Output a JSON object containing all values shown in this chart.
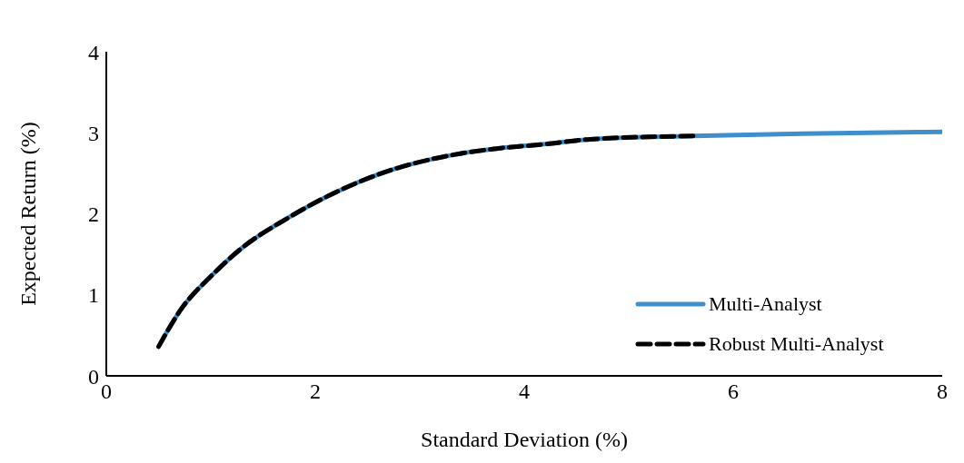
{
  "chart_data": {
    "type": "line",
    "xlabel": "Standard Deviation (%)",
    "ylabel": "Expected Return (%)",
    "xlim": [
      0,
      8
    ],
    "xticks": [
      0,
      2,
      4,
      6,
      8
    ],
    "ylim": [
      0,
      4
    ],
    "yticks": [
      0,
      1,
      2,
      3,
      4
    ],
    "grid": false,
    "legend": "bottom right",
    "marker": "none",
    "series": [
      {
        "name": "Multi-Analyst",
        "color": "#3e8fcc",
        "line_style": "solid",
        "x": [
          0.5,
          0.72,
          1.01,
          1.3,
          1.74,
          2.17,
          2.75,
          3.33,
          3.77,
          4.2,
          4.63,
          5.62,
          6.66,
          8.0
        ],
        "values": [
          0.36,
          0.83,
          1.24,
          1.58,
          1.95,
          2.25,
          2.55,
          2.73,
          2.81,
          2.86,
          2.92,
          2.96,
          2.99,
          3.01
        ]
      },
      {
        "name": "Robust Multi-Analyst",
        "color": "#000000",
        "line_style": "dashed",
        "x": [
          0.5,
          0.72,
          1.01,
          1.3,
          1.74,
          2.17,
          2.75,
          3.33,
          3.77,
          4.2,
          4.63,
          5.62
        ],
        "values": [
          0.36,
          0.83,
          1.24,
          1.58,
          1.95,
          2.25,
          2.55,
          2.73,
          2.81,
          2.86,
          2.92,
          2.96
        ]
      }
    ]
  }
}
